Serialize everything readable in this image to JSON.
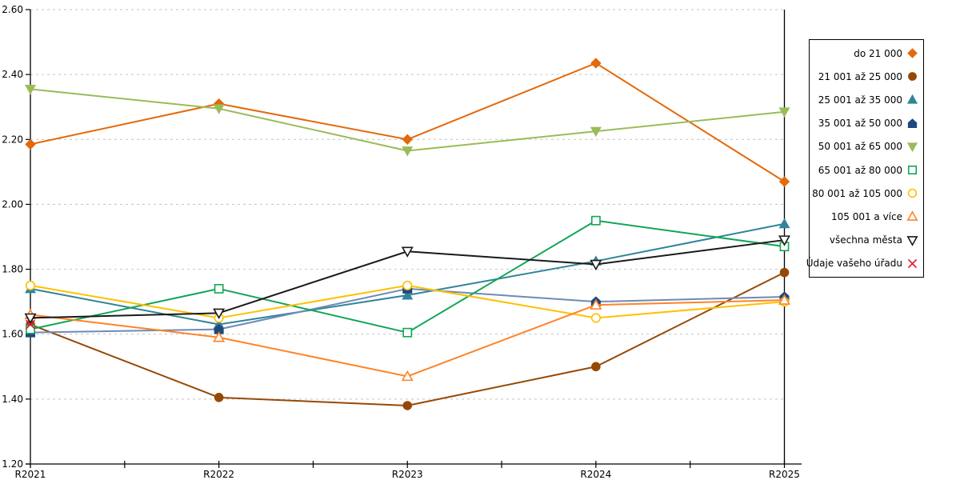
{
  "chart_data": {
    "type": "line",
    "title": "",
    "xlabel": "",
    "ylabel": "",
    "x": [
      "R2021",
      "R2022",
      "R2023",
      "R2024",
      "R2025"
    ],
    "ylim": [
      1.2,
      2.6
    ],
    "ytick_labels": [
      "2.60",
      "2.40",
      "2.20",
      "2.00",
      "1.80",
      "1.60",
      "1.40",
      "1.20"
    ],
    "grid": "horizontal dashed",
    "gridline_color": "#C3C3C3",
    "axis_color": "#000000",
    "legend_position": "right",
    "series": [
      {
        "name": "do 21 000",
        "marker": "diamond",
        "fill": "filled",
        "color": "#E3690B",
        "line_color": "#E3690B",
        "values": [
          2.185,
          2.31,
          2.2,
          2.435,
          2.07
        ]
      },
      {
        "name": "21 001 až 25 000",
        "marker": "circle",
        "fill": "filled",
        "color": "#964806",
        "line_color": "#964806",
        "values": [
          1.63,
          1.405,
          1.38,
          1.5,
          1.79
        ]
      },
      {
        "name": "25 001 až 35 000",
        "marker": "triangle-up",
        "fill": "filled",
        "color": "#31849B",
        "line_color": "#31849B",
        "values": [
          1.74,
          1.63,
          1.72,
          1.825,
          1.94
        ]
      },
      {
        "name": "35 001 až 50 000",
        "marker": "pentagon",
        "fill": "filled",
        "color": "#1F497D",
        "line_color": "#6D8BB5",
        "values": [
          1.605,
          1.615,
          1.74,
          1.7,
          1.715
        ]
      },
      {
        "name": "50 001 až 65 000",
        "marker": "triangle-down",
        "fill": "filled",
        "color": "#9BBB59",
        "line_color": "#9BBB59",
        "values": [
          2.355,
          2.295,
          2.165,
          2.225,
          2.285
        ]
      },
      {
        "name": "65 001 až 80 000",
        "marker": "square",
        "fill": "open",
        "color": "#13A556",
        "line_color": "#13A556",
        "values": [
          1.615,
          1.74,
          1.605,
          1.95,
          1.87
        ]
      },
      {
        "name": "80 001 až 105 000",
        "marker": "circle",
        "fill": "open",
        "color": "#FFC000",
        "line_color": "#FFC000",
        "values": [
          1.75,
          1.65,
          1.75,
          1.65,
          1.7
        ]
      },
      {
        "name": "105 001 a více",
        "marker": "triangle-up",
        "fill": "open",
        "color": "#FF8327",
        "line_color": "#FF8327",
        "values": [
          1.66,
          1.59,
          1.47,
          1.69,
          1.705
        ]
      },
      {
        "name": "všechna města",
        "marker": "triangle-down",
        "fill": "open",
        "color": "#1A1A1A",
        "line_color": "#1A1A1A",
        "values": [
          1.65,
          1.665,
          1.855,
          1.815,
          1.89
        ]
      },
      {
        "name": "Údaje vašeho úřadu",
        "marker": "x",
        "fill": "open",
        "color": "#E8112D",
        "line_color": "#E8112D",
        "values": [
          1.63,
          null,
          null,
          null,
          null
        ]
      }
    ]
  }
}
